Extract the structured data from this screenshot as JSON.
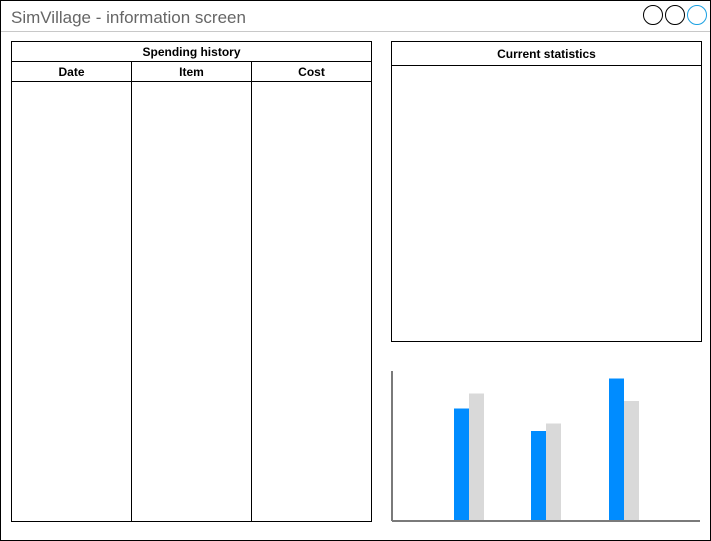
{
  "window": {
    "title": "SimVillage - information screen",
    "controls": [
      "minimize",
      "maximize",
      "close"
    ]
  },
  "spending_history": {
    "title": "Spending history",
    "columns": [
      "Date",
      "Item",
      "Cost"
    ]
  },
  "current_statistics": {
    "title": "Current statistics"
  },
  "chart_data": {
    "type": "bar",
    "title": "",
    "xlabel": "",
    "ylabel": "",
    "categories": [
      "",
      "",
      ""
    ],
    "series": [
      {
        "color": "#008cff",
        "values": [
          0.75,
          0.6,
          0.95
        ]
      },
      {
        "color": "#d9d9d9",
        "values": [
          0.85,
          0.65,
          0.8
        ]
      }
    ],
    "ylim": [
      0,
      1
    ],
    "grid": false,
    "axis_color": "#7a7a7a"
  }
}
